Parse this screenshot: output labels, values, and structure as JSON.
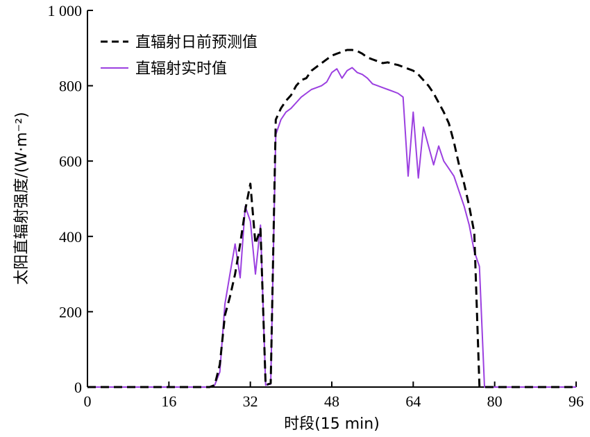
{
  "chart_data": {
    "type": "line",
    "xlabel": "时段(15 min)",
    "ylabel": "太阳直辐射强度/(W·m⁻²)",
    "xlim": [
      0,
      96
    ],
    "ylim": [
      0,
      1000
    ],
    "xticks": [
      0,
      16,
      32,
      48,
      64,
      80,
      96
    ],
    "yticks": [
      0,
      200,
      400,
      600,
      800,
      1000
    ],
    "ytick_labels": [
      "0",
      "200",
      "400",
      "600",
      "800",
      "1 000"
    ],
    "grid": false,
    "legend_position": "top-left",
    "series": [
      {
        "name": "直辐射日前预测值",
        "style": "dashed",
        "color": "#000000",
        "points": [
          [
            0,
            0
          ],
          [
            24,
            0
          ],
          [
            25,
            5
          ],
          [
            26,
            60
          ],
          [
            27,
            190
          ],
          [
            28,
            240
          ],
          [
            29,
            300
          ],
          [
            30,
            380
          ],
          [
            31,
            470
          ],
          [
            32,
            540
          ],
          [
            33,
            380
          ],
          [
            34,
            420
          ],
          [
            35,
            5
          ],
          [
            36,
            10
          ],
          [
            37,
            710
          ],
          [
            38,
            740
          ],
          [
            39,
            760
          ],
          [
            40,
            775
          ],
          [
            41,
            800
          ],
          [
            42,
            815
          ],
          [
            43,
            820
          ],
          [
            44,
            840
          ],
          [
            45,
            850
          ],
          [
            46,
            860
          ],
          [
            47,
            870
          ],
          [
            48,
            880
          ],
          [
            49,
            885
          ],
          [
            50,
            890
          ],
          [
            51,
            895
          ],
          [
            52,
            895
          ],
          [
            53,
            892
          ],
          [
            54,
            885
          ],
          [
            55,
            875
          ],
          [
            56,
            870
          ],
          [
            57,
            865
          ],
          [
            58,
            860
          ],
          [
            59,
            862
          ],
          [
            60,
            858
          ],
          [
            61,
            855
          ],
          [
            62,
            850
          ],
          [
            63,
            845
          ],
          [
            64,
            840
          ],
          [
            65,
            830
          ],
          [
            66,
            815
          ],
          [
            67,
            800
          ],
          [
            68,
            780
          ],
          [
            69,
            755
          ],
          [
            70,
            730
          ],
          [
            71,
            700
          ],
          [
            72,
            650
          ],
          [
            73,
            590
          ],
          [
            74,
            540
          ],
          [
            75,
            480
          ],
          [
            76,
            410
          ],
          [
            77,
            3
          ],
          [
            78,
            0
          ],
          [
            96,
            0
          ]
        ]
      },
      {
        "name": "直辐射实时值",
        "style": "solid",
        "color": "#9b3fe0",
        "points": [
          [
            0,
            0
          ],
          [
            24,
            0
          ],
          [
            25,
            5
          ],
          [
            26,
            40
          ],
          [
            27,
            220
          ],
          [
            28,
            300
          ],
          [
            29,
            380
          ],
          [
            30,
            290
          ],
          [
            31,
            480
          ],
          [
            32,
            440
          ],
          [
            33,
            300
          ],
          [
            34,
            430
          ],
          [
            35,
            5
          ],
          [
            36,
            8
          ],
          [
            37,
            670
          ],
          [
            38,
            710
          ],
          [
            39,
            730
          ],
          [
            40,
            740
          ],
          [
            41,
            755
          ],
          [
            42,
            770
          ],
          [
            43,
            780
          ],
          [
            44,
            790
          ],
          [
            45,
            795
          ],
          [
            46,
            800
          ],
          [
            47,
            810
          ],
          [
            48,
            835
          ],
          [
            49,
            845
          ],
          [
            50,
            820
          ],
          [
            51,
            840
          ],
          [
            52,
            848
          ],
          [
            53,
            835
          ],
          [
            54,
            830
          ],
          [
            55,
            820
          ],
          [
            56,
            805
          ],
          [
            57,
            800
          ],
          [
            58,
            795
          ],
          [
            59,
            790
          ],
          [
            60,
            785
          ],
          [
            61,
            780
          ],
          [
            62,
            770
          ],
          [
            63,
            560
          ],
          [
            64,
            730
          ],
          [
            65,
            555
          ],
          [
            66,
            690
          ],
          [
            67,
            640
          ],
          [
            68,
            590
          ],
          [
            69,
            640
          ],
          [
            70,
            600
          ],
          [
            71,
            580
          ],
          [
            72,
            560
          ],
          [
            73,
            520
          ],
          [
            74,
            480
          ],
          [
            75,
            430
          ],
          [
            76,
            360
          ],
          [
            77,
            320
          ],
          [
            78,
            0
          ],
          [
            96,
            0
          ]
        ]
      }
    ]
  }
}
